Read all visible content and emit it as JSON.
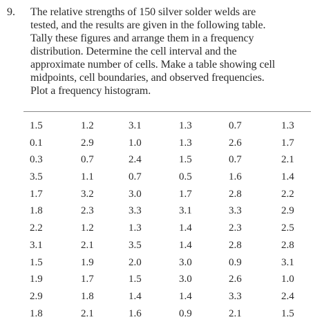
{
  "problem": {
    "number": "9.",
    "lines": [
      "The relative strengths of 150 silver solder welds are",
      "tested, and the results are given in the following table.",
      "Tally these figures and arrange them in a frequency",
      "distribution. Determine the cell interval and the",
      "approximate number of cells. Make a table showing cell",
      "midpoints, cell boundaries, and observed frequencies.",
      "Plot a frequency histogram."
    ]
  },
  "table": {
    "rows": [
      [
        "1.5",
        "1.2",
        "3.1",
        "1.3",
        "0.7",
        "1.3"
      ],
      [
        "0.1",
        "2.9",
        "1.0",
        "1.3",
        "2.6",
        "1.7"
      ],
      [
        "0.3",
        "0.7",
        "2.4",
        "1.5",
        "0.7",
        "2.1"
      ],
      [
        "3.5",
        "1.1",
        "0.7",
        "0.5",
        "1.6",
        "1.4"
      ],
      [
        "1.7",
        "3.2",
        "3.0",
        "1.7",
        "2.8",
        "2.2"
      ],
      [
        "1.8",
        "2.3",
        "3.3",
        "3.1",
        "3.3",
        "2.9"
      ],
      [
        "2.2",
        "1.2",
        "1.3",
        "1.4",
        "2.3",
        "2.5"
      ],
      [
        "3.1",
        "2.1",
        "3.5",
        "1.4",
        "2.8",
        "2.8"
      ],
      [
        "1.5",
        "1.9",
        "2.0",
        "3.0",
        "0.9",
        "3.1"
      ],
      [
        "1.9",
        "1.7",
        "1.5",
        "3.0",
        "2.6",
        "1.0"
      ],
      [
        "2.9",
        "1.8",
        "1.4",
        "1.4",
        "3.3",
        "2.4"
      ],
      [
        "1.8",
        "2.1",
        "1.6",
        "0.9",
        "2.1",
        "1.5"
      ]
    ]
  }
}
